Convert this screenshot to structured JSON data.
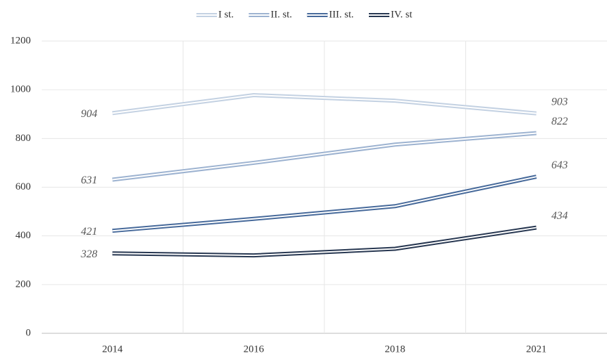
{
  "chart_data": {
    "type": "line",
    "categories": [
      "2014",
      "2016",
      "2018",
      "2021"
    ],
    "series": [
      {
        "name": "I st.",
        "color": "#c3d1e2",
        "values": [
          904,
          978,
          955,
          903
        ]
      },
      {
        "name": "II. st.",
        "color": "#9cb2d0",
        "values": [
          631,
          700,
          775,
          822
        ]
      },
      {
        "name": "III. st.",
        "color": "#46699a",
        "values": [
          421,
          470,
          522,
          643
        ]
      },
      {
        "name": "IV. st",
        "color": "#263650",
        "values": [
          328,
          320,
          347,
          434
        ]
      }
    ],
    "ylim": [
      0,
      1200
    ],
    "yticks": [
      0,
      200,
      400,
      600,
      800,
      1000,
      1200
    ],
    "grid": true,
    "legend": "top"
  }
}
